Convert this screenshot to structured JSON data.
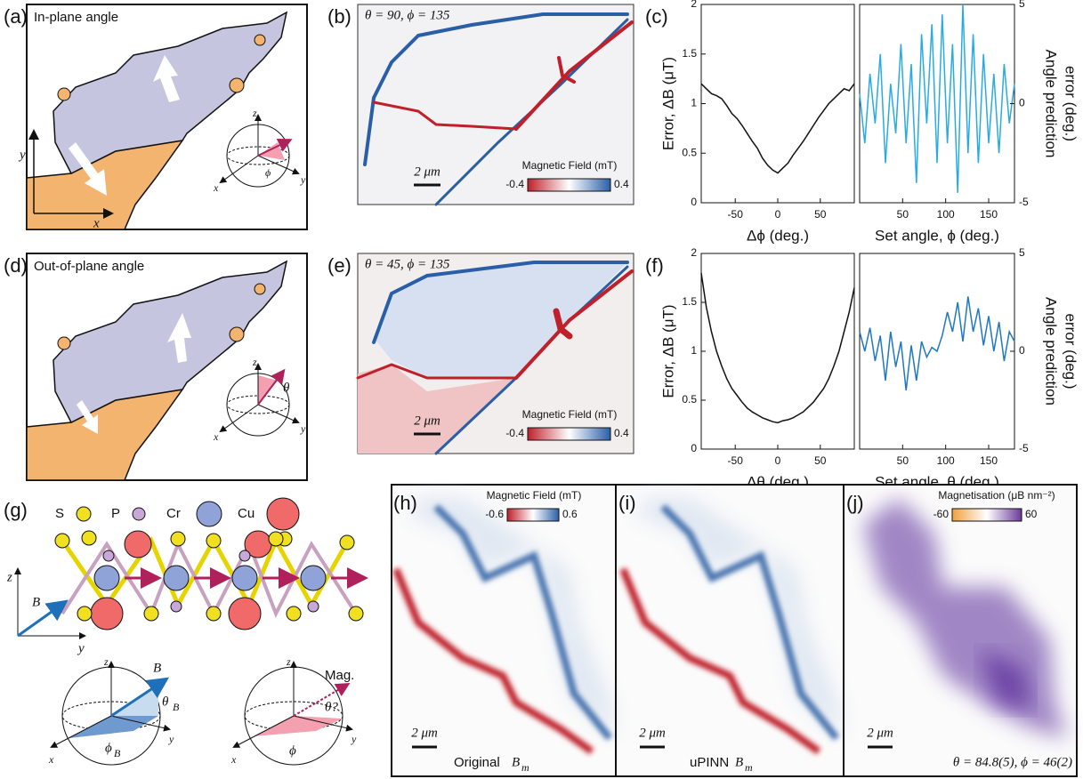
{
  "panels": {
    "a": {
      "label": "(a)",
      "title": "In-plane angle",
      "axes": [
        "x",
        "y",
        "z"
      ],
      "angle": "ϕ"
    },
    "b": {
      "label": "(b)",
      "title": "θ = 90, ϕ = 135",
      "scale": "2 μm",
      "colorbar": {
        "title": "Magnetic Field (mT)",
        "ticks": [
          -0.4,
          0.4
        ]
      }
    },
    "c": {
      "label": "(c)"
    },
    "d": {
      "label": "(d)",
      "title": "Out-of-plane angle",
      "axes": [
        "x",
        "y",
        "z"
      ],
      "angle": "θ"
    },
    "e": {
      "label": "(e)",
      "title": "θ = 45, ϕ = 135",
      "scale": "2 μm",
      "colorbar": {
        "title": "Magnetic Field (mT)",
        "ticks": [
          -0.4,
          0.4
        ]
      }
    },
    "f": {
      "label": "(f)"
    },
    "g": {
      "label": "(g)",
      "atoms": [
        "S",
        "P",
        "Cr",
        "Cu"
      ],
      "field": "B",
      "axes": [
        "x",
        "y",
        "z"
      ],
      "theta": "θ",
      "phi": "ϕ",
      "mag": "Mag.",
      "mag_theta": "θ?"
    },
    "h": {
      "label": "(h)",
      "colorbar": {
        "title": "Magnetic Field (mT)",
        "ticks": [
          -0.6,
          0.6
        ]
      },
      "scale": "2 μm",
      "caption": "Original",
      "symbol": "B",
      "sub": "m"
    },
    "i": {
      "label": "(i)",
      "scale": "2 μm",
      "caption": "uPINN",
      "symbol": "B",
      "sub": "m"
    },
    "j": {
      "label": "(j)",
      "colorbar": {
        "title": "Magnetisation (μB nm⁻²)",
        "ticks": [
          -60,
          60
        ]
      },
      "scale": "2 μm",
      "caption": "θ = 84.8(5), ϕ = 46(2)"
    }
  },
  "chart_data": [
    {
      "type": "line",
      "x_label": "Δϕ  (deg.)",
      "y_label": "Error, ΔB (μT)",
      "y_axis_side": "left",
      "color": "#111111",
      "x": [
        -90,
        -84,
        -78,
        -72,
        -66,
        -60,
        -54,
        -48,
        -42,
        -36,
        -30,
        -24,
        -18,
        -12,
        -6,
        0,
        6,
        12,
        18,
        24,
        30,
        36,
        42,
        48,
        54,
        60,
        66,
        72,
        78,
        84,
        90
      ],
      "values": [
        1.2,
        1.15,
        1.1,
        1.08,
        1.05,
        0.98,
        0.9,
        0.85,
        0.78,
        0.7,
        0.62,
        0.55,
        0.45,
        0.38,
        0.33,
        0.3,
        0.35,
        0.4,
        0.48,
        0.55,
        0.62,
        0.7,
        0.78,
        0.86,
        0.93,
        1.0,
        1.05,
        1.1,
        1.15,
        1.13,
        1.2
      ],
      "xlim": [
        -90,
        90
      ],
      "xticks": [
        -50,
        0,
        50
      ],
      "ylim": [
        0,
        2
      ],
      "yticks": [
        0,
        0.5,
        1,
        1.5,
        2
      ]
    },
    {
      "type": "line",
      "x_label": "Set angle, ϕ (deg.)",
      "y_label": [
        "Angle prediction",
        "error (deg.)"
      ],
      "y_axis_side": "right",
      "color": "#29abe2",
      "x": [
        0,
        6,
        12,
        18,
        24,
        30,
        36,
        42,
        48,
        54,
        60,
        66,
        72,
        78,
        84,
        90,
        96,
        102,
        108,
        114,
        120,
        126,
        132,
        138,
        144,
        150,
        156,
        162,
        168,
        174,
        180
      ],
      "values": [
        0.5,
        -2,
        1.5,
        -1,
        2.5,
        -3,
        1,
        -1.5,
        3,
        -2,
        2,
        -4,
        3.5,
        -1,
        4,
        -3,
        4.5,
        -2,
        3,
        -4.5,
        5,
        -2.5,
        3.5,
        -3,
        2.5,
        -2,
        1.5,
        -2.5,
        2,
        -1,
        1
      ],
      "xlim": [
        0,
        180
      ],
      "xticks": [
        50,
        100,
        150
      ],
      "ylim": [
        -5,
        5
      ],
      "yticks": [
        -5,
        0,
        5
      ]
    },
    {
      "type": "line",
      "x_label": "Δθ  (deg.)",
      "y_label": "Error, ΔB (μT)",
      "y_axis_side": "left",
      "color": "#111111",
      "x": [
        -90,
        -84,
        -78,
        -72,
        -66,
        -60,
        -54,
        -48,
        -42,
        -36,
        -30,
        -24,
        -18,
        -12,
        -6,
        0,
        6,
        12,
        18,
        24,
        30,
        36,
        42,
        48,
        54,
        60,
        66,
        72,
        78,
        84,
        90
      ],
      "values": [
        1.8,
        1.45,
        1.2,
        1.0,
        0.85,
        0.72,
        0.62,
        0.55,
        0.48,
        0.42,
        0.38,
        0.35,
        0.32,
        0.3,
        0.28,
        0.27,
        0.29,
        0.3,
        0.32,
        0.35,
        0.38,
        0.43,
        0.48,
        0.55,
        0.62,
        0.72,
        0.85,
        1.0,
        1.2,
        1.4,
        1.65
      ],
      "xlim": [
        -90,
        90
      ],
      "xticks": [
        -50,
        0,
        50
      ],
      "ylim": [
        0,
        2
      ],
      "yticks": [
        0,
        0.5,
        1,
        1.5,
        2
      ]
    },
    {
      "type": "line",
      "x_label": "Set angle, θ (deg.)",
      "y_label": [
        "Angle prediction",
        "error (deg.)"
      ],
      "y_axis_side": "right",
      "color": "#1f78c1",
      "x": [
        0,
        6,
        12,
        18,
        24,
        30,
        36,
        42,
        48,
        54,
        60,
        66,
        72,
        78,
        84,
        90,
        96,
        102,
        108,
        114,
        120,
        126,
        132,
        138,
        144,
        150,
        156,
        162,
        168,
        174,
        180
      ],
      "values": [
        1,
        0,
        1.2,
        -0.5,
        0.8,
        -1.5,
        1,
        -0.8,
        0.5,
        -2,
        0.3,
        -1.5,
        0.5,
        -0.3,
        0.2,
        0,
        0.8,
        2,
        1,
        2.5,
        0.5,
        2.8,
        1,
        2.2,
        0.3,
        1.8,
        0,
        1.5,
        -0.5,
        1,
        0.5
      ],
      "xlim": [
        0,
        180
      ],
      "xticks": [
        50,
        100,
        150
      ],
      "ylim": [
        -5,
        5
      ],
      "yticks": [
        -5,
        0,
        5
      ]
    }
  ]
}
